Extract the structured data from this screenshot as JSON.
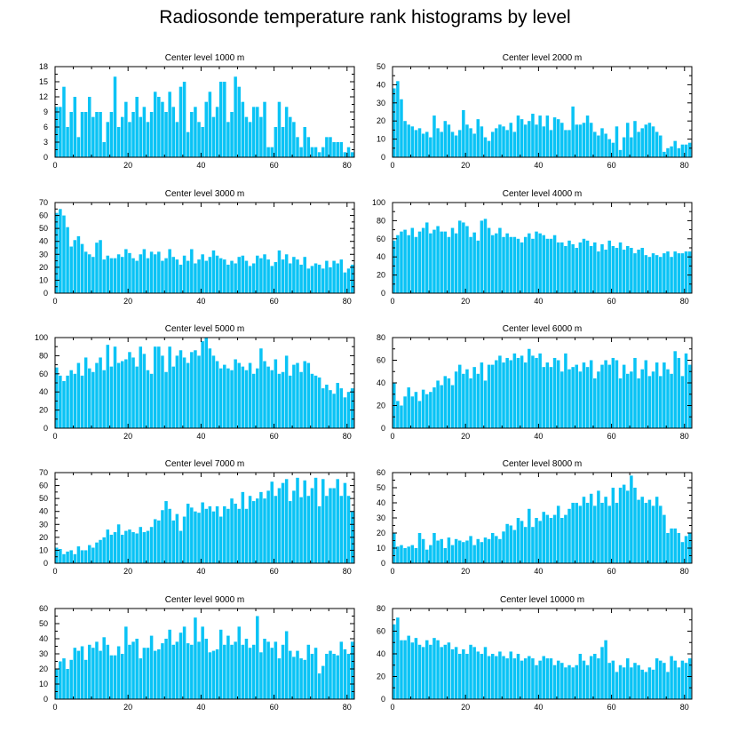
{
  "title": "Radiosonde temperature rank histograms by level",
  "chart_data": [
    {
      "type": "bar",
      "title": "Center level 1000 m",
      "ylim": [
        0,
        18
      ],
      "yticks": [
        0,
        3,
        6,
        9,
        12,
        15,
        18
      ],
      "xlim": [
        0,
        82
      ],
      "xticks": [
        0,
        20,
        40,
        60,
        80
      ],
      "values": [
        10,
        10,
        14,
        6,
        9,
        12,
        4,
        9,
        9,
        12,
        8,
        9,
        9,
        3,
        7,
        9,
        16,
        6,
        8,
        11,
        7,
        9,
        12,
        8,
        10,
        7,
        9,
        13,
        12,
        11,
        9,
        13,
        10,
        7,
        14,
        15,
        5,
        9,
        10,
        7,
        6,
        11,
        13,
        8,
        10,
        15,
        15,
        7,
        9,
        16,
        14,
        11,
        8,
        7,
        10,
        10,
        8,
        11,
        2,
        2,
        6,
        11,
        6,
        10,
        8,
        7,
        4,
        2,
        6,
        4,
        2,
        2,
        1,
        2,
        4,
        4,
        3,
        3,
        3,
        1,
        2,
        1
      ]
    },
    {
      "type": "bar",
      "title": "Center level 2000 m",
      "ylim": [
        0,
        50
      ],
      "yticks": [
        0,
        10,
        20,
        30,
        40,
        50
      ],
      "xlim": [
        0,
        82
      ],
      "xticks": [
        0,
        20,
        40,
        60,
        80
      ],
      "values": [
        38,
        42,
        32,
        20,
        18,
        17,
        15,
        16,
        13,
        14,
        11,
        23,
        16,
        14,
        20,
        18,
        14,
        12,
        15,
        26,
        18,
        16,
        13,
        21,
        17,
        11,
        9,
        14,
        16,
        18,
        17,
        15,
        19,
        14,
        23,
        21,
        18,
        20,
        24,
        18,
        23,
        17,
        23,
        15,
        22,
        21,
        19,
        15,
        15,
        28,
        18,
        18,
        19,
        23,
        19,
        14,
        12,
        16,
        13,
        10,
        8,
        17,
        4,
        11,
        19,
        11,
        20,
        14,
        16,
        18,
        19,
        17,
        14,
        12,
        3,
        5,
        6,
        9,
        5,
        7,
        7,
        8
      ]
    },
    {
      "type": "bar",
      "title": "Center level 3000 m",
      "ylim": [
        0,
        70
      ],
      "yticks": [
        0,
        10,
        20,
        30,
        40,
        50,
        60,
        70
      ],
      "xlim": [
        0,
        82
      ],
      "xticks": [
        0,
        20,
        40,
        60,
        80
      ],
      "values": [
        62,
        65,
        60,
        51,
        36,
        41,
        44,
        38,
        32,
        30,
        28,
        39,
        41,
        26,
        29,
        27,
        27,
        30,
        28,
        34,
        31,
        27,
        25,
        30,
        34,
        27,
        32,
        30,
        32,
        25,
        27,
        34,
        28,
        26,
        22,
        29,
        25,
        34,
        23,
        26,
        30,
        25,
        28,
        33,
        29,
        27,
        26,
        22,
        25,
        23,
        28,
        29,
        25,
        21,
        23,
        29,
        27,
        30,
        26,
        21,
        24,
        33,
        26,
        30,
        23,
        28,
        26,
        22,
        28,
        19,
        21,
        23,
        22,
        19,
        25,
        20,
        25,
        23,
        26,
        16,
        19,
        22
      ]
    },
    {
      "type": "bar",
      "title": "Center level 4000 m",
      "ylim": [
        0,
        100
      ],
      "yticks": [
        0,
        20,
        40,
        60,
        80,
        100
      ],
      "xlim": [
        0,
        82
      ],
      "xticks": [
        0,
        20,
        40,
        60,
        80
      ],
      "values": [
        58,
        64,
        68,
        70,
        64,
        72,
        62,
        68,
        72,
        78,
        66,
        70,
        74,
        68,
        68,
        62,
        72,
        66,
        80,
        78,
        74,
        62,
        67,
        58,
        80,
        82,
        72,
        64,
        66,
        72,
        62,
        66,
        62,
        62,
        60,
        56,
        62,
        66,
        60,
        68,
        66,
        64,
        60,
        60,
        64,
        56,
        56,
        52,
        58,
        54,
        50,
        56,
        60,
        58,
        52,
        56,
        46,
        54,
        48,
        58,
        52,
        50,
        56,
        48,
        52,
        50,
        44,
        48,
        50,
        42,
        40,
        44,
        42,
        40,
        44,
        46,
        40,
        46,
        44,
        44,
        46,
        46
      ]
    },
    {
      "type": "bar",
      "title": "Center level 5000 m",
      "ylim": [
        0,
        100
      ],
      "yticks": [
        0,
        20,
        40,
        60,
        80,
        100
      ],
      "xlim": [
        0,
        82
      ],
      "xticks": [
        0,
        20,
        40,
        60,
        80
      ],
      "values": [
        67,
        58,
        52,
        58,
        64,
        60,
        72,
        58,
        78,
        66,
        62,
        72,
        78,
        64,
        92,
        68,
        90,
        72,
        74,
        76,
        84,
        78,
        68,
        90,
        82,
        64,
        60,
        90,
        90,
        80,
        62,
        90,
        68,
        80,
        86,
        78,
        72,
        84,
        86,
        80,
        96,
        100,
        88,
        80,
        74,
        66,
        70,
        66,
        64,
        76,
        72,
        68,
        64,
        72,
        60,
        66,
        88,
        74,
        68,
        64,
        76,
        60,
        62,
        80,
        58,
        70,
        72,
        62,
        74,
        72,
        60,
        58,
        56,
        44,
        48,
        42,
        38,
        50,
        44,
        34,
        40,
        44
      ]
    },
    {
      "type": "bar",
      "title": "Center level 6000 m",
      "ylim": [
        0,
        80
      ],
      "yticks": [
        0,
        20,
        40,
        60,
        80
      ],
      "xlim": [
        0,
        82
      ],
      "xticks": [
        0,
        20,
        40,
        60,
        80
      ],
      "values": [
        40,
        24,
        20,
        28,
        36,
        28,
        32,
        24,
        34,
        30,
        32,
        36,
        42,
        38,
        46,
        44,
        38,
        50,
        56,
        48,
        52,
        44,
        54,
        48,
        58,
        42,
        56,
        56,
        60,
        64,
        58,
        62,
        60,
        66,
        62,
        64,
        58,
        70,
        64,
        62,
        66,
        54,
        58,
        54,
        62,
        60,
        50,
        66,
        52,
        54,
        56,
        50,
        58,
        54,
        60,
        44,
        50,
        56,
        60,
        56,
        62,
        60,
        44,
        56,
        48,
        50,
        62,
        44,
        52,
        60,
        46,
        50,
        58,
        46,
        58,
        52,
        48,
        68,
        62,
        46,
        66,
        56
      ]
    },
    {
      "type": "bar",
      "title": "Center level 7000 m",
      "ylim": [
        0,
        70
      ],
      "yticks": [
        0,
        10,
        20,
        30,
        40,
        50,
        60,
        70
      ],
      "xlim": [
        0,
        82
      ],
      "xticks": [
        0,
        20,
        40,
        60,
        80
      ],
      "values": [
        12,
        11,
        7,
        9,
        10,
        7,
        13,
        10,
        10,
        14,
        12,
        16,
        18,
        20,
        26,
        22,
        24,
        30,
        22,
        25,
        26,
        24,
        23,
        28,
        24,
        25,
        28,
        34,
        33,
        41,
        48,
        42,
        33,
        38,
        25,
        36,
        46,
        43,
        40,
        39,
        47,
        42,
        44,
        40,
        44,
        36,
        44,
        42,
        50,
        46,
        42,
        55,
        42,
        52,
        48,
        50,
        55,
        50,
        56,
        63,
        52,
        58,
        62,
        65,
        48,
        56,
        66,
        51,
        64,
        52,
        58,
        66,
        44,
        65,
        52,
        58,
        58,
        65,
        52,
        62,
        52,
        40
      ]
    },
    {
      "type": "bar",
      "title": "Center level 8000 m",
      "ylim": [
        0,
        60
      ],
      "yticks": [
        0,
        10,
        20,
        30,
        40,
        50,
        60
      ],
      "xlim": [
        0,
        82
      ],
      "xticks": [
        0,
        20,
        40,
        60,
        80
      ],
      "values": [
        20,
        11,
        12,
        10,
        11,
        12,
        10,
        20,
        16,
        9,
        12,
        20,
        15,
        16,
        10,
        17,
        12,
        16,
        15,
        14,
        15,
        18,
        12,
        16,
        14,
        17,
        16,
        20,
        18,
        16,
        21,
        26,
        25,
        22,
        30,
        28,
        24,
        36,
        24,
        30,
        28,
        34,
        32,
        30,
        32,
        38,
        30,
        32,
        36,
        40,
        40,
        38,
        44,
        40,
        46,
        38,
        48,
        40,
        44,
        38,
        50,
        40,
        50,
        52,
        48,
        58,
        50,
        42,
        44,
        40,
        42,
        38,
        44,
        38,
        32,
        20,
        23,
        23,
        20,
        14,
        18,
        20
      ]
    },
    {
      "type": "bar",
      "title": "Center level 9000 m",
      "ylim": [
        0,
        60
      ],
      "yticks": [
        0,
        10,
        20,
        30,
        40,
        50,
        60
      ],
      "xlim": [
        0,
        82
      ],
      "xticks": [
        0,
        20,
        40,
        60,
        80
      ],
      "values": [
        20,
        25,
        27,
        20,
        26,
        34,
        32,
        35,
        26,
        36,
        34,
        38,
        32,
        41,
        36,
        29,
        29,
        35,
        30,
        48,
        36,
        38,
        40,
        27,
        34,
        34,
        42,
        32,
        33,
        37,
        40,
        46,
        36,
        38,
        44,
        48,
        37,
        36,
        54,
        38,
        48,
        40,
        31,
        32,
        33,
        46,
        36,
        42,
        36,
        38,
        48,
        36,
        40,
        34,
        36,
        55,
        31,
        40,
        38,
        34,
        38,
        27,
        36,
        45,
        32,
        28,
        32,
        27,
        26,
        36,
        30,
        34,
        17,
        22,
        30,
        32,
        30,
        29,
        38,
        33,
        30,
        38
      ]
    },
    {
      "type": "bar",
      "title": "Center level 10000 m",
      "ylim": [
        0,
        80
      ],
      "yticks": [
        0,
        20,
        40,
        60,
        80
      ],
      "xlim": [
        0,
        82
      ],
      "xticks": [
        0,
        20,
        40,
        60,
        80
      ],
      "values": [
        66,
        72,
        52,
        52,
        56,
        50,
        54,
        48,
        46,
        52,
        48,
        54,
        52,
        46,
        48,
        50,
        44,
        46,
        40,
        44,
        40,
        48,
        46,
        42,
        40,
        46,
        38,
        40,
        38,
        42,
        38,
        36,
        42,
        36,
        40,
        34,
        36,
        38,
        36,
        30,
        34,
        38,
        36,
        36,
        30,
        34,
        32,
        28,
        30,
        28,
        30,
        40,
        34,
        30,
        38,
        40,
        36,
        46,
        52,
        32,
        34,
        24,
        30,
        28,
        36,
        28,
        32,
        30,
        26,
        24,
        28,
        26,
        36,
        34,
        32,
        24,
        38,
        34,
        28,
        34,
        32,
        36
      ]
    }
  ]
}
